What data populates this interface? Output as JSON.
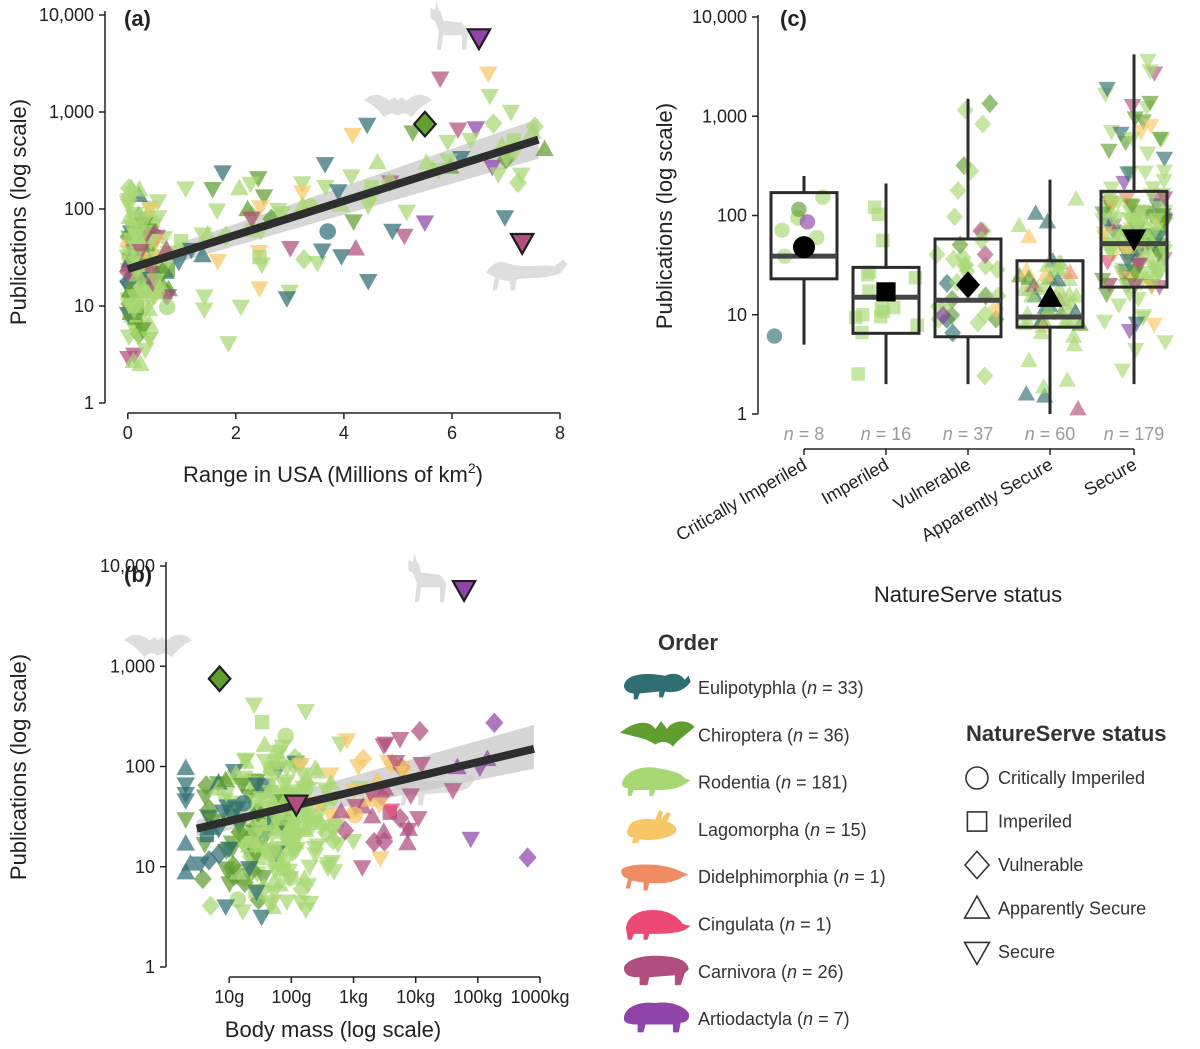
{
  "colors": {
    "Eulipotyphla": "#2f6e73",
    "Chiroptera": "#5f9e2f",
    "Rodentia": "#a8d873",
    "Lagomorpha": "#f7c767",
    "Didelphimorphia": "#f08c63",
    "Cingulata": "#ea4a73",
    "Carnivora": "#b04e7d",
    "Artiodactyla": "#8e44a8",
    "fit": "#2e2e2e",
    "ci": "#c8c8c8"
  },
  "panel_labels": {
    "a": "(a)",
    "b": "(b)",
    "c": "(c)"
  },
  "legend": {
    "order_title": "Order",
    "orders": [
      {
        "name": "Eulipotyphla",
        "n": "33",
        "icon": "shrew-icon"
      },
      {
        "name": "Chiroptera",
        "n": "36",
        "icon": "bat-icon"
      },
      {
        "name": "Rodentia",
        "n": "181",
        "icon": "rodent-icon"
      },
      {
        "name": "Lagomorpha",
        "n": "15",
        "icon": "rabbit-icon"
      },
      {
        "name": "Didelphimorphia",
        "n": "1",
        "icon": "opossum-icon"
      },
      {
        "name": "Cingulata",
        "n": "1",
        "icon": "armadillo-icon"
      },
      {
        "name": "Carnivora",
        "n": "26",
        "icon": "bear-icon"
      },
      {
        "name": "Artiodactyla",
        "n": "7",
        "icon": "bison-icon"
      }
    ],
    "status_title": "NatureServe status",
    "statuses": [
      {
        "name": "Critically Imperiled",
        "shape": "circle"
      },
      {
        "name": "Imperiled",
        "shape": "square"
      },
      {
        "name": "Vulnerable",
        "shape": "diamond"
      },
      {
        "name": "Apparently Secure",
        "shape": "triangle-up"
      },
      {
        "name": "Secure",
        "shape": "triangle-down"
      }
    ]
  },
  "chart_data": [
    {
      "id": "a",
      "type": "scatter",
      "title": "",
      "xlabel": "Range in USA (Millions of km",
      "xlabel_sup": "2",
      "xlabel_end": ")",
      "ylabel": "Publications (log scale)",
      "xlim": [
        -0.2,
        8
      ],
      "ylim": [
        1,
        10000
      ],
      "yscale": "log",
      "xticks": [
        0,
        2,
        4,
        6,
        8
      ],
      "xtick_labels": [
        "0",
        "2",
        "4",
        "6",
        "8"
      ],
      "yticks": [
        1,
        10,
        100,
        1000,
        10000
      ],
      "ytick_labels": [
        "1",
        "10",
        "100",
        "1,000",
        "10,000"
      ],
      "fit": {
        "x": [
          0,
          7.6
        ],
        "y": [
          24,
          520
        ]
      },
      "ci_band": {
        "x": [
          0,
          7.6
        ],
        "lower": [
          20,
          330
        ],
        "upper": [
          29,
          850
        ]
      },
      "highlighted": [
        {
          "x": 6.5,
          "y": 5800,
          "order": "Artiodactyla",
          "status": "Secure"
        },
        {
          "x": 5.5,
          "y": 750,
          "order": "Chiroptera",
          "status": "Vulnerable"
        },
        {
          "x": 7.3,
          "y": 45,
          "order": "Carnivora",
          "status": "Secure"
        }
      ]
    },
    {
      "id": "b",
      "type": "scatter",
      "title": "",
      "xlabel": "Body mass (log scale)",
      "ylabel": "Publications (log scale)",
      "xscale": "log",
      "xlim": [
        1.5,
        1000000
      ],
      "ylim": [
        1,
        10000
      ],
      "yscale": "log",
      "xticks": [
        10,
        100,
        1000,
        10000,
        100000,
        1000000
      ],
      "xtick_labels": [
        "10g",
        "100g",
        "1kg",
        "10kg",
        "100kg",
        "1000kg"
      ],
      "yticks": [
        1,
        10,
        100,
        1000,
        10000
      ],
      "ytick_labels": [
        "1",
        "10",
        "100",
        "1,000",
        "10,000"
      ],
      "fit": {
        "x": [
          3,
          800000
        ],
        "y": [
          24,
          150
        ]
      },
      "ci_band": {
        "x": [
          3,
          800000
        ],
        "lower": [
          20,
          95
        ],
        "upper": [
          29,
          260
        ]
      },
      "highlighted": [
        {
          "x": 60000,
          "y": 5800,
          "order": "Artiodactyla",
          "status": "Secure"
        },
        {
          "x": 7,
          "y": 750,
          "order": "Chiroptera",
          "status": "Vulnerable"
        },
        {
          "x": 120,
          "y": 42,
          "order": "Carnivora",
          "status": "Secure"
        }
      ]
    },
    {
      "id": "c",
      "type": "box",
      "title": "",
      "xlabel": "NatureServe status",
      "ylabel": "Publications (log scale)",
      "yscale": "log",
      "ylim": [
        1,
        10000
      ],
      "yticks": [
        1,
        10,
        100,
        1000,
        10000
      ],
      "ytick_labels": [
        "1",
        "10",
        "100",
        "1,000",
        "10,000"
      ],
      "categories": [
        "Critically Imperiled",
        "Imperiled",
        "Vulnerable",
        "Apparently Secure",
        "Secure"
      ],
      "n_prefix": "n",
      "n_values": [
        "8",
        "16",
        "37",
        "60",
        "179"
      ],
      "boxes": [
        {
          "q1": 23,
          "median": 39,
          "q3": 170,
          "whisker_low": 5,
          "whisker_high": 250,
          "mean": 48,
          "shape": "circle"
        },
        {
          "q1": 6.5,
          "median": 15,
          "q3": 30,
          "whisker_low": 2,
          "whisker_high": 210,
          "mean": 17,
          "shape": "square"
        },
        {
          "q1": 6,
          "median": 14,
          "q3": 58,
          "whisker_low": 2,
          "whisker_high": 1500,
          "mean": 20,
          "shape": "diamond"
        },
        {
          "q1": 7.5,
          "median": 9.5,
          "q3": 35,
          "whisker_low": 1,
          "whisker_high": 230,
          "mean": 15,
          "shape": "triangle-up"
        },
        {
          "q1": 19,
          "median": 52,
          "q3": 175,
          "whisker_low": 2,
          "whisker_high": 4200,
          "mean": 58,
          "shape": "triangle-down"
        }
      ]
    }
  ]
}
